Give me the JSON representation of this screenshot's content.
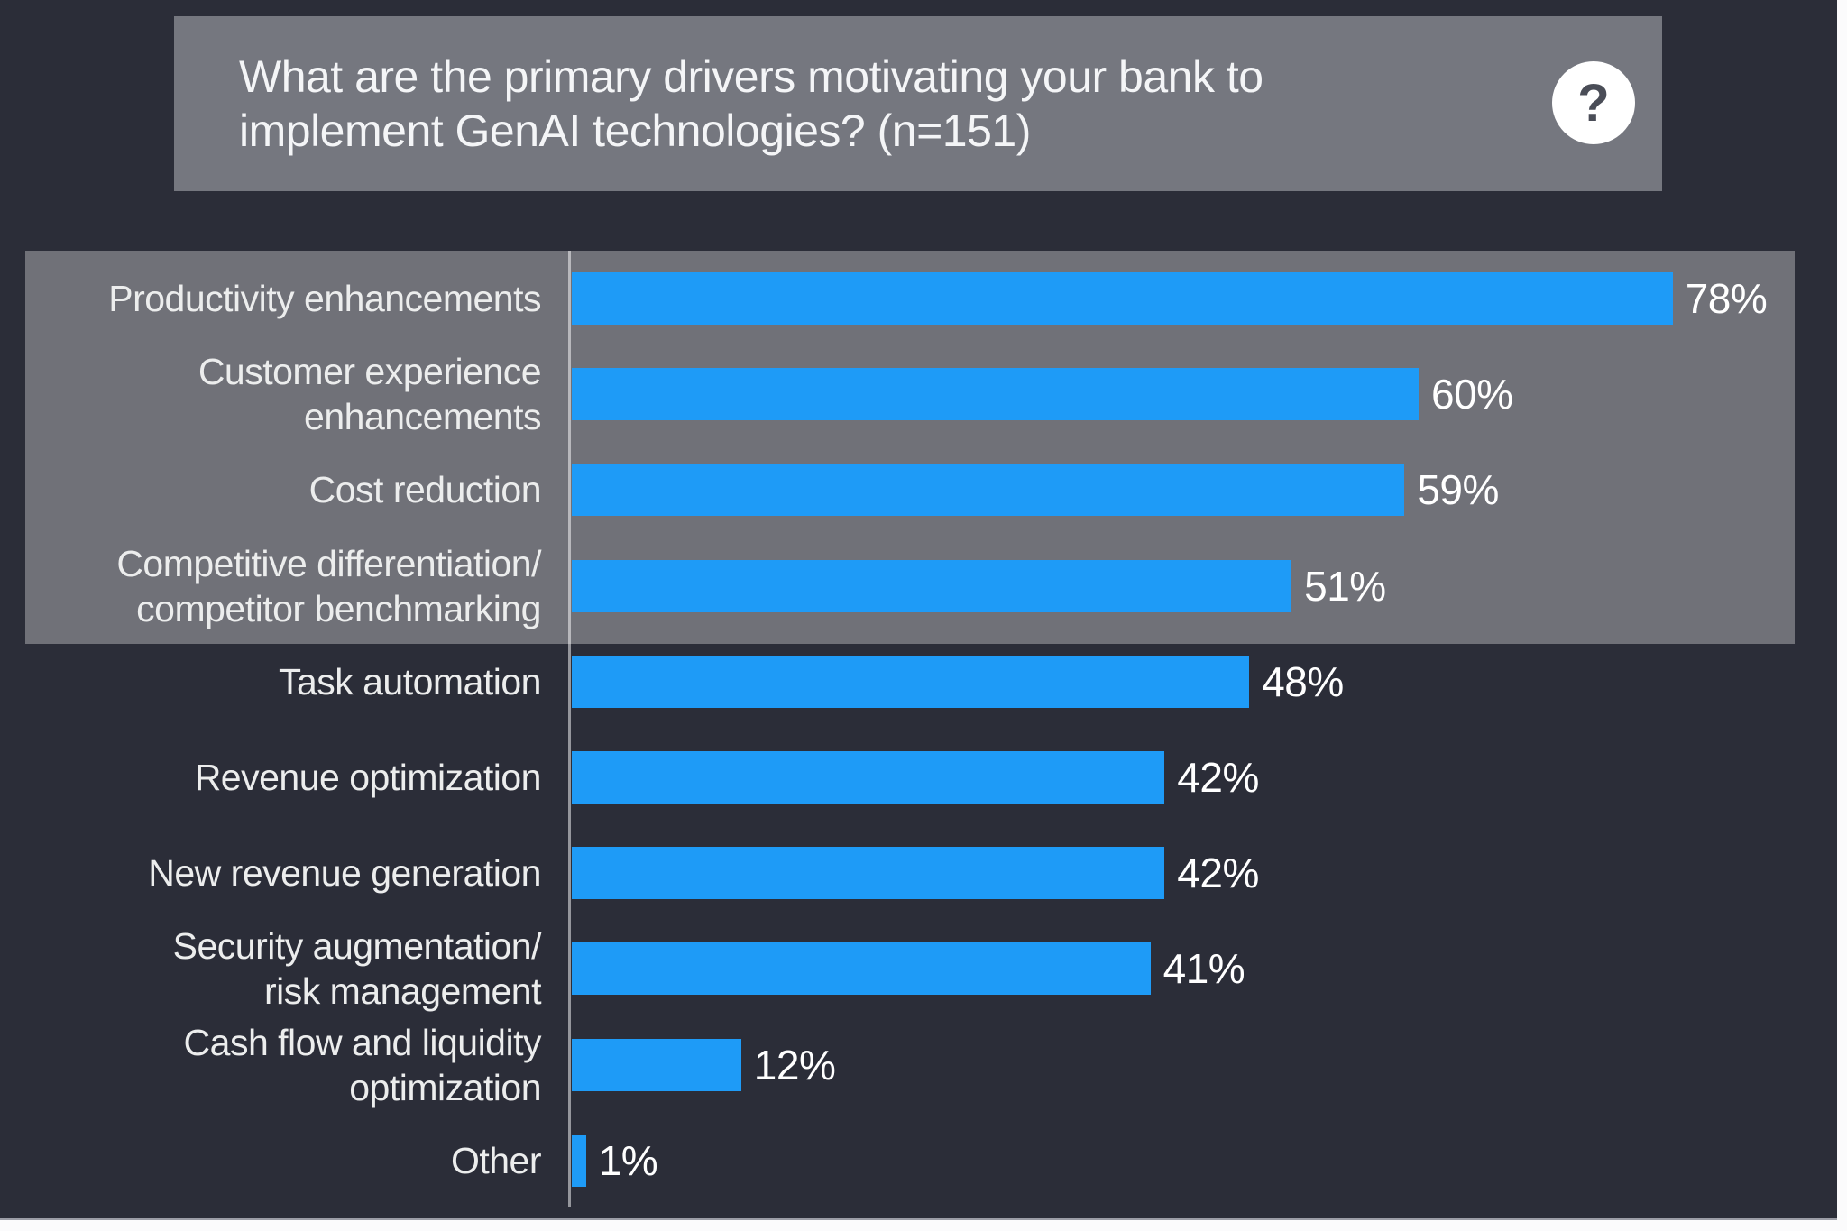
{
  "header": {
    "title_lines": [
      "What are the primary drivers motivating your bank to",
      "implement GenAI technologies? (n=151)"
    ],
    "help_glyph": "?"
  },
  "chart_data": {
    "type": "bar",
    "orientation": "horizontal",
    "title": "What are the primary drivers motivating your bank to implement GenAI technologies? (n=151)",
    "sample_size_label": "n=151",
    "categories": [
      "Productivity enhancements",
      "Customer experience enhancements",
      "Cost reduction",
      "Competitive differentiation/ competitor benchmarking",
      "Task automation",
      "Revenue optimization",
      "New revenue generation",
      "Security augmentation/ risk management",
      "Cash flow and liquidity optimization",
      "Other"
    ],
    "category_label_lines": [
      [
        "Productivity enhancements"
      ],
      [
        "Customer experience",
        "enhancements"
      ],
      [
        "Cost reduction"
      ],
      [
        "Competitive differentiation/",
        "competitor benchmarking"
      ],
      [
        "Task automation"
      ],
      [
        "Revenue optimization"
      ],
      [
        "New revenue generation"
      ],
      [
        "Security augmentation/",
        "risk management"
      ],
      [
        "Cash flow and liquidity",
        "optimization"
      ],
      [
        "Other"
      ]
    ],
    "values": [
      78,
      60,
      59,
      51,
      48,
      42,
      42,
      41,
      12,
      1
    ],
    "value_labels": [
      "78%",
      "60%",
      "59%",
      "51%",
      "48%",
      "42%",
      "42%",
      "41%",
      "12%",
      "1%"
    ],
    "value_suffix": "%",
    "highlighted_indices": [
      0,
      1,
      2,
      3
    ],
    "layout": {
      "legend": false,
      "grid": false,
      "value_axis": "hidden",
      "category_axis": "left",
      "data_labels": "outside-end"
    },
    "colors": {
      "bar": "#1e9bf7",
      "panel_bg": "#2b2d38",
      "title_box_bg": "#75777f",
      "highlight_overlay": "rgba(255,255,255,0.325)",
      "label_text": "#eceded",
      "value_text": "#ffffff",
      "title_text": "#f4f5f7",
      "axis_line": "rgba(255,255,255,0.5)"
    }
  }
}
